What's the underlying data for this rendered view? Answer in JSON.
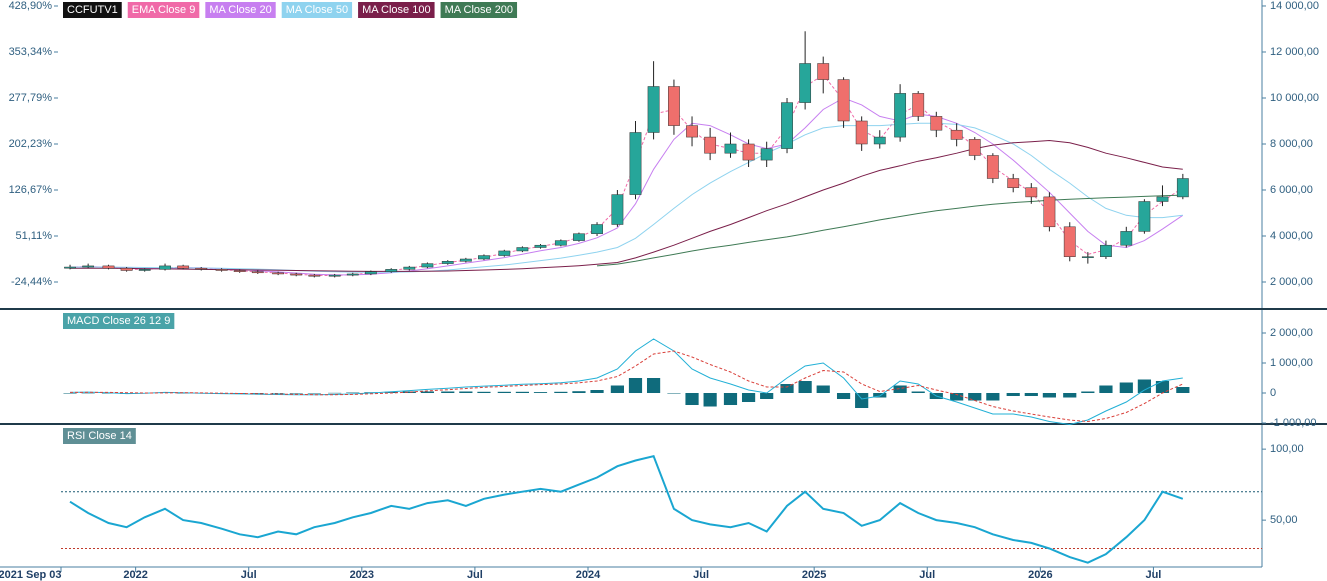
{
  "x": [
    2021.71,
    2021.79,
    2021.88,
    2021.96,
    2022.04,
    2022.13,
    2022.21,
    2022.29,
    2022.38,
    2022.46,
    2022.54,
    2022.63,
    2022.71,
    2022.79,
    2022.88,
    2022.96,
    2023.04,
    2023.13,
    2023.21,
    2023.29,
    2023.38,
    2023.46,
    2023.54,
    2023.63,
    2023.71,
    2023.79,
    2023.88,
    2023.96,
    2024.04,
    2024.13,
    2024.21,
    2024.29,
    2024.38,
    2024.46,
    2024.54,
    2024.63,
    2024.71,
    2024.79,
    2024.88,
    2024.96,
    2025.04,
    2025.13,
    2025.21,
    2025.29,
    2025.38,
    2025.46,
    2025.54,
    2025.63,
    2025.71,
    2025.79,
    2025.88,
    2025.96,
    2026.04,
    2026.13,
    2026.21,
    2026.29,
    2026.38,
    2026.46,
    2026.54,
    2026.63
  ],
  "xlim": [
    2021.67,
    2026.98
  ],
  "xticks": [
    {
      "value": 2021.67,
      "label": "2021 Sep 03"
    },
    2022,
    {
      "value": 2022.5,
      "label": "Jul"
    },
    2023,
    {
      "value": 2023.5,
      "label": "Jul"
    },
    2024,
    {
      "value": 2024.5,
      "label": "Jul"
    },
    2025,
    {
      "value": 2025.5,
      "label": "Jul"
    },
    2026,
    {
      "value": 2026.5,
      "label": "Jul"
    }
  ],
  "chart_data": [
    {
      "type": "candlestick",
      "name": "CCFUTV1",
      "up_color": "#26a69a",
      "down_color": "#ef6f6c",
      "open": [
        2600,
        2650,
        2700,
        2600,
        2500,
        2550,
        2700,
        2600,
        2550,
        2500,
        2450,
        2400,
        2350,
        2300,
        2250,
        2300,
        2350,
        2450,
        2550,
        2650,
        2800,
        2900,
        3000,
        3150,
        3350,
        3500,
        3600,
        3800,
        4100,
        4500,
        5800,
        8500,
        10500,
        8800,
        8300,
        7600,
        8000,
        7300,
        7800,
        9800,
        11500,
        10800,
        9000,
        8000,
        8300,
        10200,
        9200,
        8600,
        8200,
        7500,
        6500,
        6100,
        5700,
        4400,
        3100,
        3100,
        3600,
        4200,
        5500,
        5700
      ],
      "high": [
        2750,
        2800,
        2750,
        2650,
        2600,
        2800,
        2750,
        2650,
        2600,
        2550,
        2500,
        2450,
        2400,
        2350,
        2350,
        2400,
        2500,
        2600,
        2700,
        2850,
        2950,
        3050,
        3200,
        3400,
        3550,
        3650,
        3850,
        4150,
        4600,
        6000,
        9000,
        11600,
        10800,
        9200,
        8700,
        8500,
        8200,
        8100,
        10000,
        12900,
        11800,
        10900,
        9200,
        8600,
        10600,
        10300,
        9400,
        8900,
        8300,
        7600,
        6700,
        6300,
        5900,
        4600,
        3300,
        3800,
        4400,
        5600,
        6200,
        6700
      ],
      "low": [
        2550,
        2600,
        2550,
        2450,
        2450,
        2500,
        2550,
        2500,
        2450,
        2400,
        2350,
        2300,
        2250,
        2200,
        2200,
        2250,
        2300,
        2400,
        2500,
        2600,
        2750,
        2850,
        2950,
        3100,
        3300,
        3450,
        3550,
        3750,
        4000,
        4400,
        5600,
        8200,
        8400,
        7900,
        7300,
        7400,
        7000,
        7000,
        7600,
        9500,
        10200,
        8700,
        7700,
        7800,
        8100,
        9000,
        8300,
        7900,
        7300,
        6300,
        5900,
        5400,
        4200,
        2900,
        2800,
        3000,
        3500,
        4100,
        5300,
        5600
      ],
      "close": [
        2650,
        2700,
        2600,
        2500,
        2550,
        2700,
        2600,
        2550,
        2500,
        2450,
        2400,
        2350,
        2300,
        2250,
        2300,
        2350,
        2450,
        2550,
        2650,
        2800,
        2900,
        3000,
        3150,
        3350,
        3500,
        3600,
        3800,
        4100,
        4500,
        5800,
        8500,
        10500,
        8800,
        8300,
        7600,
        8000,
        7300,
        7800,
        9800,
        11500,
        10800,
        9000,
        8000,
        8300,
        10200,
        9200,
        8600,
        8200,
        7500,
        6500,
        6100,
        5700,
        4400,
        3100,
        3100,
        3600,
        4200,
        5500,
        5700,
        6500
      ],
      "series": [
        {
          "name": "EMA  Close 9",
          "color": "#f06aa8",
          "dash": true,
          "values": [
            2650,
            2670,
            2640,
            2560,
            2540,
            2620,
            2640,
            2590,
            2540,
            2490,
            2440,
            2390,
            2340,
            2290,
            2280,
            2320,
            2400,
            2500,
            2600,
            2720,
            2850,
            2950,
            3070,
            3250,
            3420,
            3550,
            3700,
            3950,
            4300,
            5200,
            7200,
            9300,
            9500,
            8600,
            8000,
            7800,
            7600,
            7600,
            8700,
            10500,
            11000,
            9900,
            8600,
            8200,
            9300,
            9700,
            9000,
            8500,
            7900,
            7000,
            6400,
            5900,
            5000,
            3800,
            3200,
            3400,
            3900,
            4900,
            5500,
            6100
          ]
        },
        {
          "name": "MA  Close 20",
          "color": "#c77ff0",
          "values": [
            2650,
            2660,
            2650,
            2620,
            2580,
            2600,
            2620,
            2620,
            2580,
            2540,
            2490,
            2440,
            2390,
            2340,
            2310,
            2310,
            2340,
            2400,
            2480,
            2580,
            2700,
            2820,
            2930,
            3060,
            3210,
            3360,
            3500,
            3680,
            3920,
            4350,
            5400,
            6900,
            8200,
            8900,
            8800,
            8400,
            8000,
            7800,
            8000,
            8700,
            9500,
            10000,
            9700,
            9200,
            9000,
            9300,
            9200,
            8900,
            8500,
            8000,
            7300,
            6600,
            5900,
            5000,
            4200,
            3600,
            3500,
            3800,
            4300,
            4900
          ]
        },
        {
          "name": "MA  Close 50",
          "color": "#8fd3ef",
          "values": [
            2650,
            2650,
            2650,
            2640,
            2630,
            2620,
            2620,
            2610,
            2600,
            2580,
            2560,
            2530,
            2500,
            2470,
            2450,
            2430,
            2420,
            2420,
            2440,
            2470,
            2520,
            2590,
            2660,
            2740,
            2830,
            2930,
            3040,
            3160,
            3300,
            3500,
            3900,
            4500,
            5200,
            5800,
            6300,
            6800,
            7200,
            7600,
            8000,
            8400,
            8700,
            8800,
            8800,
            8800,
            8850,
            8900,
            8900,
            8850,
            8700,
            8400,
            8000,
            7500,
            6900,
            6300,
            5700,
            5200,
            4900,
            4800,
            4800,
            4900
          ]
        },
        {
          "name": "MA  Close 100",
          "color": "#7a1f4a",
          "values": [
            2600,
            2600,
            2600,
            2590,
            2580,
            2570,
            2560,
            2550,
            2540,
            2530,
            2520,
            2510,
            2500,
            2490,
            2480,
            2470,
            2460,
            2460,
            2460,
            2470,
            2480,
            2500,
            2520,
            2550,
            2580,
            2620,
            2660,
            2710,
            2770,
            2850,
            3050,
            3300,
            3600,
            3900,
            4200,
            4500,
            4800,
            5100,
            5400,
            5700,
            6000,
            6300,
            6600,
            6850,
            7050,
            7250,
            7400,
            7600,
            7800,
            7950,
            8050,
            8100,
            8150,
            8050,
            7850,
            7600,
            7400,
            7200,
            7000,
            6900
          ]
        },
        {
          "name": "MA  Close 200",
          "color": "#3f7a55",
          "values": [
            null,
            null,
            null,
            null,
            null,
            null,
            null,
            null,
            null,
            null,
            null,
            null,
            null,
            null,
            null,
            null,
            null,
            null,
            null,
            null,
            null,
            null,
            null,
            null,
            null,
            null,
            null,
            null,
            2700,
            2780,
            2900,
            3050,
            3200,
            3350,
            3480,
            3600,
            3720,
            3840,
            3960,
            4100,
            4250,
            4400,
            4550,
            4700,
            4850,
            4980,
            5100,
            5200,
            5300,
            5380,
            5450,
            5500,
            5550,
            5600,
            5630,
            5660,
            5690,
            5720,
            5750,
            5780
          ]
        }
      ],
      "ylim": [
        870,
        14260
      ],
      "yticks": [
        {
          "value": 2000,
          "label": "2 000,00"
        },
        {
          "value": 4000,
          "label": "4 000,00"
        },
        {
          "value": 6000,
          "label": "6 000,00"
        },
        {
          "value": 8000,
          "label": "8 000,00"
        },
        {
          "value": 10000,
          "label": "10 000,00"
        },
        {
          "value": 12000,
          "label": "12 000,00"
        },
        {
          "value": 14000,
          "label": "14 000,00"
        }
      ],
      "y2lim": [
        -67.15,
        438.76
      ],
      "y2ticks": [
        {
          "value": -24.44,
          "label": "-24,44%"
        },
        {
          "value": 51.11,
          "label": "51,11%"
        },
        {
          "value": 126.67,
          "label": "126,67%"
        },
        {
          "value": 202.23,
          "label": "202,23%"
        },
        {
          "value": 277.79,
          "label": "277,79%"
        },
        {
          "value": 353.34,
          "label": "353,34%"
        },
        {
          "value": 428.9,
          "label": "428,90%"
        }
      ]
    },
    {
      "type": "macd",
      "title": "MACD  Close 26 12 9",
      "title_color": "#4aa3a8",
      "series": [
        {
          "kind": "bar",
          "color": "#0f6b7c",
          "values": [
            0,
            5,
            -10,
            -30,
            -10,
            15,
            0,
            -15,
            -15,
            -15,
            -15,
            -15,
            -15,
            -5,
            5,
            15,
            25,
            40,
            50,
            50,
            50,
            50,
            40,
            40,
            40,
            30,
            40,
            60,
            100,
            250,
            500,
            500,
            0,
            -400,
            -450,
            -400,
            -300,
            -200,
            300,
            400,
            250,
            -200,
            -500,
            -150,
            250,
            50,
            -200,
            -250,
            -250,
            -250,
            -100,
            -100,
            -150,
            -150,
            50,
            250,
            350,
            450,
            400,
            200
          ]
        },
        {
          "kind": "line",
          "color": "#22b0d6",
          "values": [
            20,
            30,
            10,
            -20,
            -10,
            20,
            10,
            -10,
            -20,
            -30,
            -40,
            -50,
            -60,
            -60,
            -50,
            -30,
            0,
            40,
            80,
            120,
            160,
            200,
            230,
            260,
            290,
            310,
            340,
            400,
            500,
            800,
            1400,
            1800,
            1400,
            800,
            500,
            300,
            100,
            0,
            500,
            900,
            1000,
            500,
            -200,
            -100,
            400,
            300,
            -100,
            -300,
            -500,
            -700,
            -700,
            -800,
            -950,
            -1050,
            -900,
            -600,
            -300,
            100,
            400,
            500
          ]
        },
        {
          "kind": "line",
          "dash": true,
          "color": "#d9403a",
          "values": [
            20,
            25,
            20,
            10,
            0,
            5,
            10,
            5,
            -5,
            -15,
            -25,
            -35,
            -45,
            -55,
            -55,
            -45,
            -25,
            0,
            30,
            70,
            110,
            150,
            190,
            220,
            250,
            280,
            300,
            340,
            400,
            550,
            900,
            1300,
            1400,
            1200,
            950,
            700,
            400,
            200,
            200,
            500,
            750,
            700,
            300,
            50,
            150,
            250,
            100,
            -50,
            -250,
            -450,
            -600,
            -700,
            -800,
            -900,
            -950,
            -850,
            -650,
            -350,
            0,
            300
          ]
        }
      ],
      "ylim": [
        -1000,
        2767
      ],
      "yticks": [
        {
          "value": -1000,
          "label": "-1 000,00"
        },
        0,
        {
          "value": 1000,
          "label": "1 000,00"
        },
        {
          "value": 2000,
          "label": "2 000,00"
        }
      ]
    },
    {
      "type": "rsi",
      "title": "RSI  Close 14",
      "title_color": "#5f8f95",
      "series": [
        {
          "kind": "line",
          "color": "#1aa6d1",
          "values": [
            63,
            55,
            48,
            45,
            52,
            58,
            50,
            48,
            44,
            40,
            38,
            42,
            40,
            45,
            48,
            52,
            55,
            60,
            58,
            62,
            64,
            60,
            65,
            68,
            70,
            72,
            70,
            75,
            80,
            88,
            92,
            95,
            58,
            50,
            47,
            45,
            48,
            42,
            60,
            70,
            58,
            55,
            46,
            50,
            62,
            55,
            50,
            48,
            45,
            40,
            36,
            34,
            30,
            24,
            20,
            26,
            38,
            50,
            70,
            65
          ]
        }
      ],
      "levels": [
        {
          "value": 70,
          "color": "#1b5a73"
        },
        {
          "value": 30,
          "color": "#c0392b"
        }
      ],
      "ylim": [
        17,
        117
      ],
      "yticks": [
        {
          "value": 50,
          "label": "50,00"
        },
        {
          "value": 100,
          "label": "100,00"
        }
      ]
    }
  ]
}
